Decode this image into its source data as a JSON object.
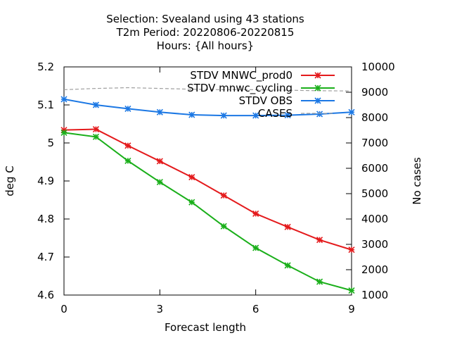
{
  "chart_data": {
    "type": "line",
    "title_lines": [
      "Selection: Svealand using    43 stations",
      "T2m   Period: 20220806-20220815",
      "Hours: {All hours}"
    ],
    "xlabel": "Forecast length",
    "ylabel": "deg C",
    "y2label": "No cases",
    "xlim": [
      0,
      9
    ],
    "ylim": [
      4.6,
      5.2
    ],
    "y2lim": [
      1000,
      10000
    ],
    "x_ticks": [
      0,
      3,
      6,
      9
    ],
    "y_ticks": [
      4.6,
      4.7,
      4.8,
      4.9,
      5,
      5.1,
      5.2
    ],
    "y_tick_labels": [
      "4.6",
      "4.7",
      "4.8",
      "4.9",
      "5",
      "5.1",
      "5.2"
    ],
    "y2_ticks": [
      1000,
      2000,
      3000,
      4000,
      5000,
      6000,
      7000,
      8000,
      9000,
      10000
    ],
    "grid": false,
    "legend_position": "top-right",
    "x": [
      0,
      1,
      2,
      3,
      4,
      5,
      6,
      7,
      8,
      9
    ],
    "series": [
      {
        "name": "STDV MNWC_prod0",
        "color": "#e41a1c",
        "style": "line-points",
        "axis": "y",
        "values": [
          5.034,
          5.036,
          4.993,
          4.952,
          4.91,
          4.862,
          4.814,
          4.779,
          4.745,
          4.719
        ]
      },
      {
        "name": "STDV mnwc_cycling",
        "color": "#1aaf1a",
        "style": "line-points",
        "axis": "y",
        "values": [
          5.027,
          5.016,
          4.953,
          4.897,
          4.844,
          4.781,
          4.724,
          4.678,
          4.635,
          4.612
        ]
      },
      {
        "name": "STDV OBS",
        "color": "#1c78e4",
        "style": "line-points",
        "axis": "y",
        "values": [
          5.115,
          5.1,
          5.09,
          5.081,
          5.074,
          5.072,
          5.072,
          5.073,
          5.076,
          5.081
        ]
      },
      {
        "name": "CASES",
        "color": "#a0a0a0",
        "style": "dashed",
        "axis": "y2",
        "values": [
          9100,
          9150,
          9180,
          9150,
          9120,
          9100,
          9100,
          9080,
          9060,
          9050
        ]
      }
    ]
  }
}
